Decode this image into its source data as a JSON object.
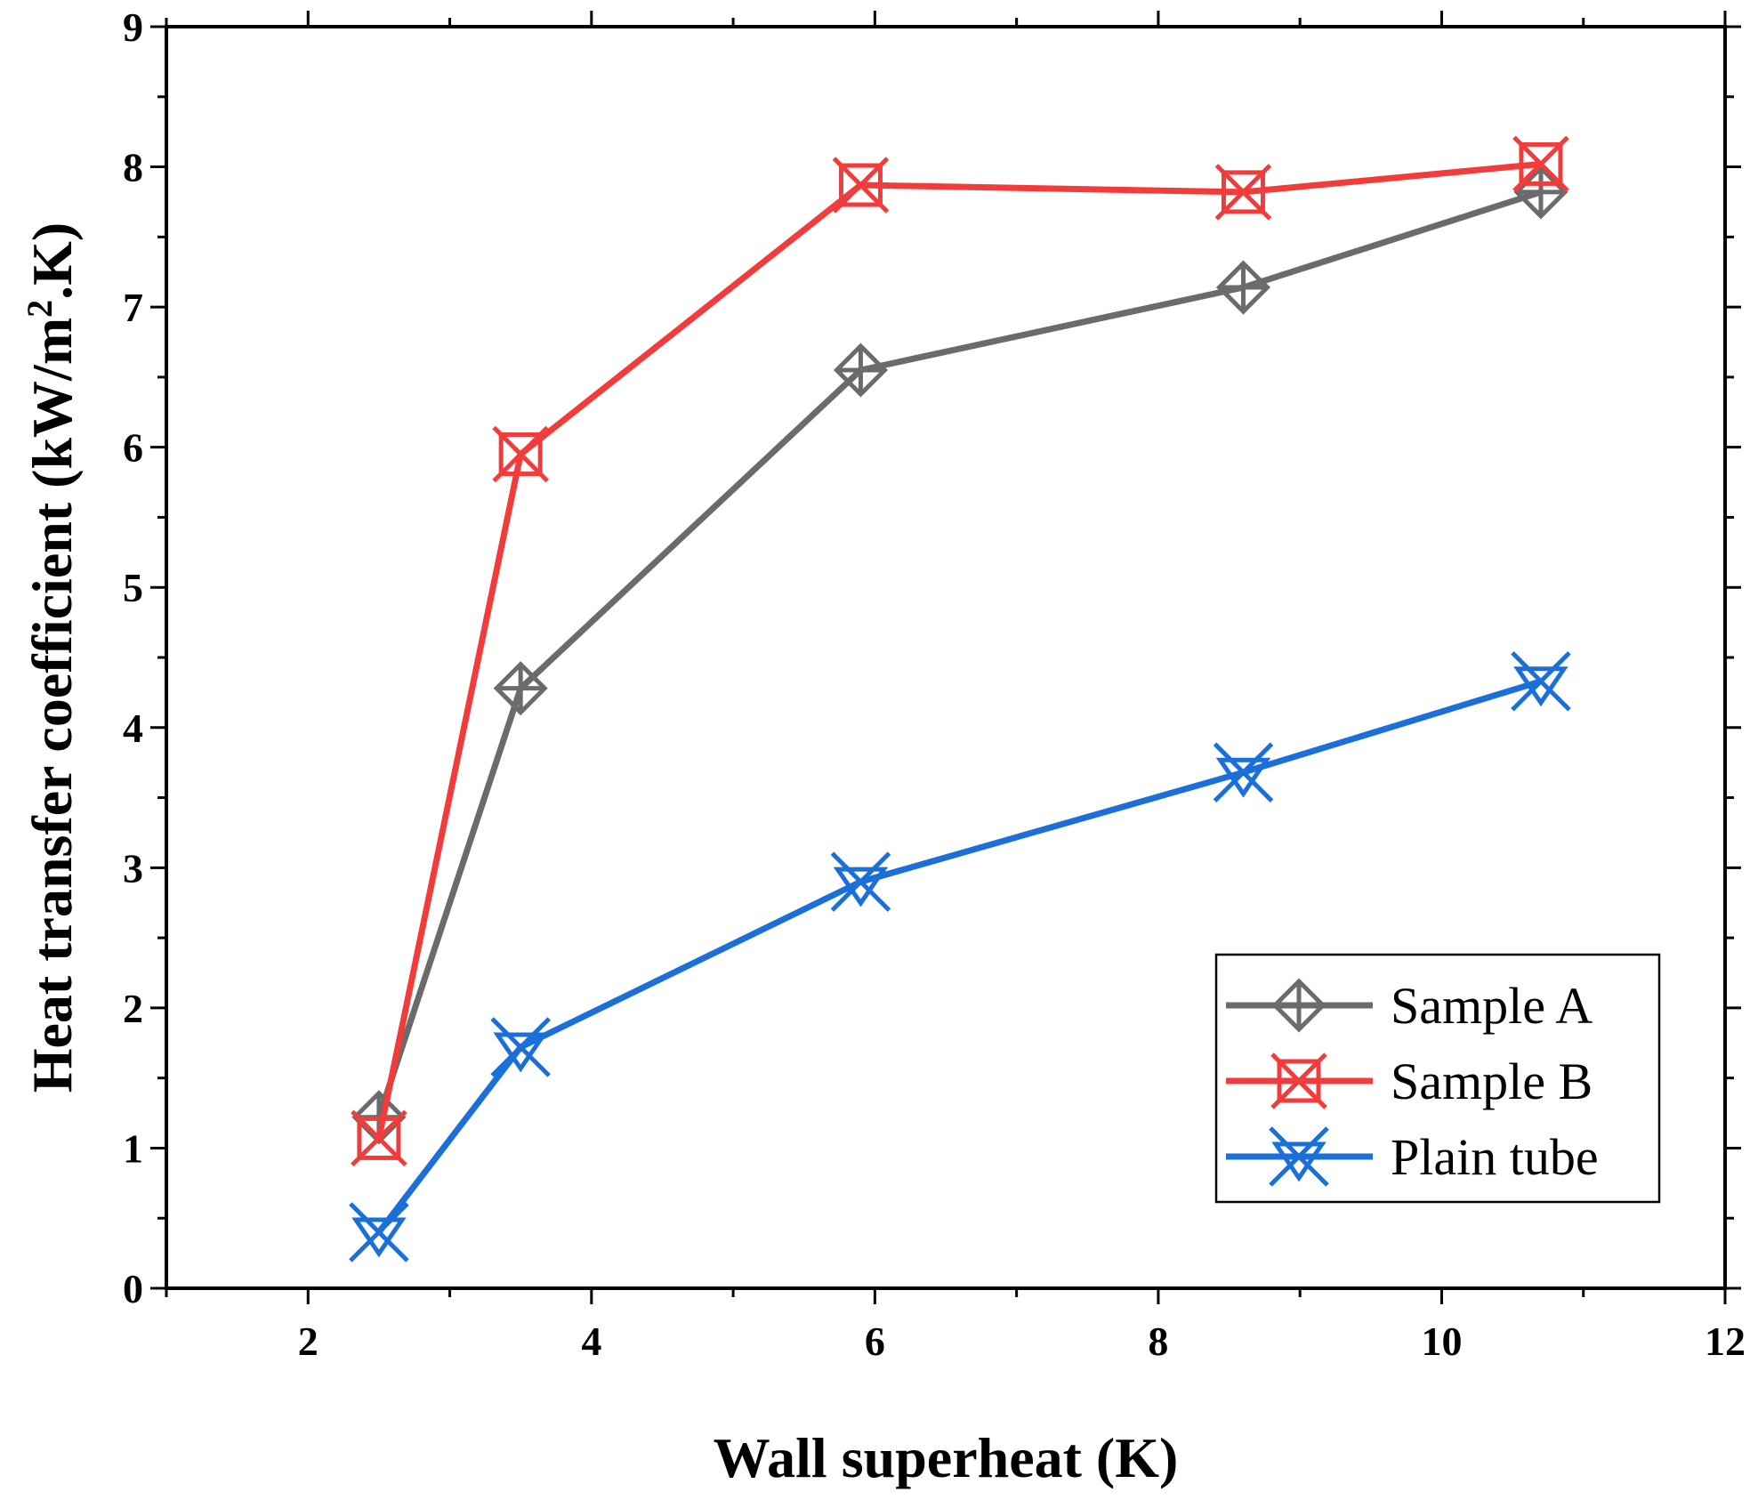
{
  "chart_data": {
    "type": "line",
    "xlabel": "Wall superheat (K)",
    "ylabel_main": "Heat transfer coefficient (kW/m",
    "ylabel_sup": "2",
    "ylabel_end": ".K)",
    "xlim": [
      1,
      12
    ],
    "ylim": [
      0,
      9
    ],
    "x_ticks": [
      2,
      4,
      6,
      8,
      10,
      12
    ],
    "x_tick_labels": [
      "2",
      "4",
      "6",
      "8",
      "10",
      "12"
    ],
    "y_ticks": [
      0,
      1,
      2,
      3,
      4,
      5,
      6,
      7,
      8,
      9
    ],
    "y_tick_labels": [
      "0",
      "1",
      "2",
      "3",
      "4",
      "5",
      "6",
      "7",
      "8",
      "9"
    ],
    "grid": false,
    "legend_position": "bottom-right",
    "series": [
      {
        "name": "Sample A",
        "color": "#6b6b6b",
        "marker": "diamond-plus",
        "x": [
          2.5,
          3.5,
          5.9,
          8.6,
          10.7
        ],
        "y": [
          1.22,
          4.28,
          6.55,
          7.14,
          7.82
        ]
      },
      {
        "name": "Sample B",
        "color": "#f23c3c",
        "marker": "square-x",
        "x": [
          2.5,
          3.5,
          5.9,
          8.6,
          10.7
        ],
        "y": [
          1.07,
          5.95,
          7.87,
          7.82,
          8.02
        ]
      },
      {
        "name": "Plain tube",
        "color": "#1a6fd8",
        "marker": "star-triangle",
        "x": [
          2.5,
          3.5,
          5.9,
          8.6,
          10.7
        ],
        "y": [
          0.4,
          1.72,
          2.9,
          3.68,
          4.33
        ]
      }
    ]
  }
}
